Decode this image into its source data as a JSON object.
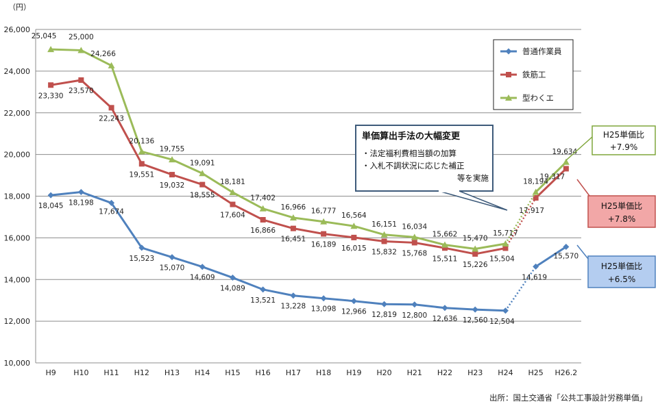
{
  "unit_label": "（円）",
  "source": "出所：国土交通省「公共工事設計労務単価」",
  "note": {
    "title": "単価算出手法の大幅変更",
    "lines": [
      "・法定福利費相当額の加算",
      "・入札不調状況に応じた補正",
      "等を実施"
    ]
  },
  "callouts": [
    {
      "series": "型わくエ",
      "line1": "H25単価比",
      "line2": "+7.9%",
      "fill": "#ffffff",
      "border": "#7fa63a"
    },
    {
      "series": "鉄筋工",
      "line1": "H25単価比",
      "line2": "+7.8%",
      "fill": "#f2a7a7",
      "border": "#c0504d"
    },
    {
      "series": "普通作業員",
      "line1": "H25単価比",
      "line2": "+6.5%",
      "fill": "#b4cdf0",
      "border": "#4f81bd"
    }
  ],
  "chart_data": {
    "type": "line",
    "categories": [
      "H9",
      "H10",
      "H11",
      "H12",
      "H13",
      "H14",
      "H15",
      "H16",
      "H17",
      "H18",
      "H19",
      "H20",
      "H21",
      "H22",
      "H23",
      "H24",
      "H25",
      "H26.2"
    ],
    "ylim": [
      10000,
      26000
    ],
    "yticks": [
      "10,000",
      "12,000",
      "14,000",
      "16,000",
      "18,000",
      "20,000",
      "22,000",
      "24,000",
      "26,000"
    ],
    "grid": true,
    "legend_position": "top-right",
    "dotted_segment": [
      "H24",
      "H25"
    ],
    "series": [
      {
        "name": "普通作業員",
        "color": "#4f81bd",
        "marker": "diamond",
        "values": [
          18045,
          18198,
          17674,
          15523,
          15070,
          14609,
          14089,
          13521,
          13228,
          13098,
          12966,
          12819,
          12800,
          12636,
          12560,
          12504,
          14619,
          15570
        ],
        "labels": [
          "18,045",
          "18,198",
          "17,674",
          "15,523",
          "15,070",
          "14,609",
          "14,089",
          "13,521",
          "13,228",
          "13,098",
          "12,966",
          "12,819",
          "12,800",
          "12,636",
          "12,560",
          "12,504",
          "14,619",
          "15,570"
        ]
      },
      {
        "name": "鉄筋工",
        "color": "#c0504d",
        "marker": "square",
        "values": [
          23330,
          23570,
          22243,
          19551,
          19032,
          18555,
          17604,
          16866,
          16451,
          16189,
          16015,
          15832,
          15768,
          15511,
          15226,
          15504,
          17917,
          19317
        ],
        "labels": [
          "23,330",
          "23,570",
          "22,243",
          "19,551",
          "19,032",
          "18,555",
          "17,604",
          "16,866",
          "16,451",
          "16,189",
          "16,015",
          "15,832",
          "15,768",
          "15,511",
          "15,226",
          "15,504",
          "17,917",
          "19,317"
        ]
      },
      {
        "name": "型わくエ",
        "color": "#9bbb59",
        "marker": "triangle",
        "values": [
          25045,
          25000,
          24266,
          20136,
          19755,
          19091,
          18181,
          17402,
          16966,
          16777,
          16564,
          16151,
          16034,
          15662,
          15470,
          15717,
          18194,
          19634
        ],
        "labels": [
          "25,045",
          "25,000",
          "24,266",
          "20,136",
          "19,755",
          "19,091",
          "18,181",
          "17,402",
          "16,966",
          "16,777",
          "16,564",
          "16,151",
          "16,034",
          "15,662",
          "15,470",
          "15,717",
          "18,194",
          "19,634"
        ]
      }
    ]
  }
}
